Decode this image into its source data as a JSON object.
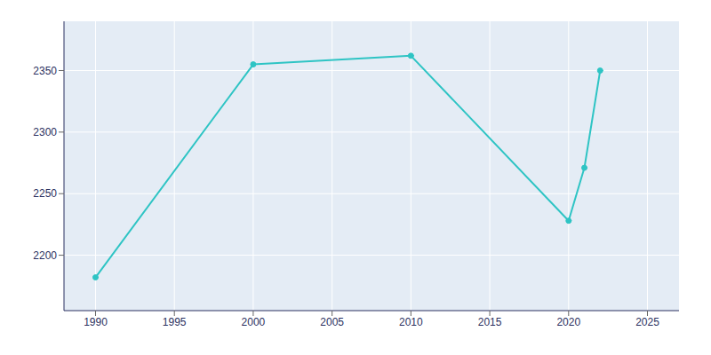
{
  "chart_data": {
    "type": "line",
    "x": [
      1990,
      2000,
      2010,
      2020,
      2021,
      2022
    ],
    "values": [
      2182,
      2355,
      2362,
      2228,
      2271,
      2350
    ],
    "color": "#2EC4C4",
    "marker": "circle",
    "xlim": [
      1988,
      2027
    ],
    "ylim": [
      2155,
      2390
    ],
    "xticks": [
      1990,
      1995,
      2000,
      2005,
      2010,
      2015,
      2020,
      2025
    ],
    "yticks": [
      2200,
      2250,
      2300,
      2350
    ],
    "grid": true
  }
}
